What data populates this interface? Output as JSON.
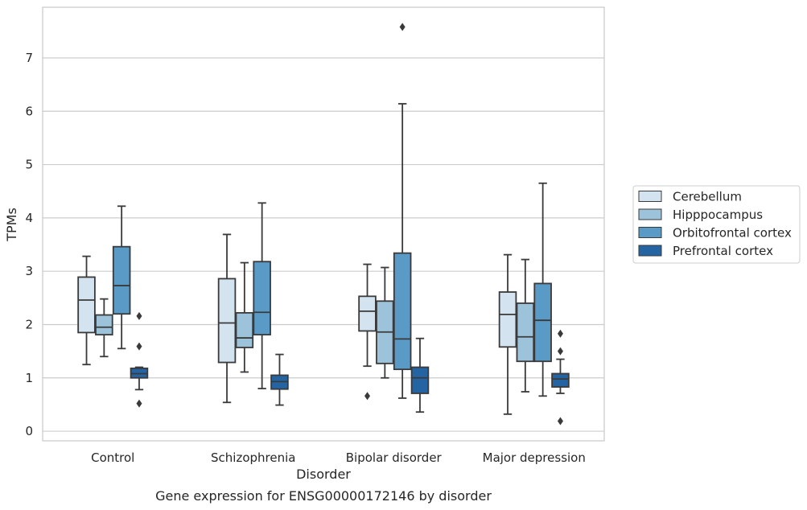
{
  "chart_data": {
    "type": "box",
    "title": "Gene expression for ENSG00000172146 by disorder",
    "xlabel": "Disorder",
    "ylabel": "TPMs",
    "ylim": [
      -0.18,
      7.95
    ],
    "yticks": [
      0,
      1,
      2,
      3,
      4,
      5,
      6,
      7
    ],
    "grid": "horizontal",
    "legend_position": "right",
    "categories": [
      "Control",
      "Schizophrenia",
      "Bipolar disorder",
      "Major depression"
    ],
    "series": [
      {
        "name": "Cerebellum",
        "color": "#d4e3f0",
        "boxes": [
          {
            "whisker_low": 1.25,
            "q1": 1.85,
            "median": 2.46,
            "q3": 2.89,
            "whisker_high": 3.28,
            "outliers": []
          },
          {
            "whisker_low": 0.54,
            "q1": 1.29,
            "median": 2.03,
            "q3": 2.86,
            "whisker_high": 3.69,
            "outliers": []
          },
          {
            "whisker_low": 1.22,
            "q1": 1.88,
            "median": 2.25,
            "q3": 2.53,
            "whisker_high": 3.13,
            "outliers": [
              0.66
            ]
          },
          {
            "whisker_low": 0.32,
            "q1": 1.58,
            "median": 2.19,
            "q3": 2.61,
            "whisker_high": 3.31,
            "outliers": []
          }
        ]
      },
      {
        "name": "Hipppocampus",
        "color": "#9cc3da",
        "boxes": [
          {
            "whisker_low": 1.4,
            "q1": 1.81,
            "median": 1.95,
            "q3": 2.18,
            "whisker_high": 2.48,
            "outliers": []
          },
          {
            "whisker_low": 1.11,
            "q1": 1.57,
            "median": 1.75,
            "q3": 2.22,
            "whisker_high": 3.16,
            "outliers": []
          },
          {
            "whisker_low": 1.0,
            "q1": 1.27,
            "median": 1.86,
            "q3": 2.44,
            "whisker_high": 3.07,
            "outliers": []
          },
          {
            "whisker_low": 0.74,
            "q1": 1.31,
            "median": 1.77,
            "q3": 2.4,
            "whisker_high": 3.22,
            "outliers": []
          }
        ]
      },
      {
        "name": "Orbitofrontal cortex",
        "color": "#5a9ac6",
        "boxes": [
          {
            "whisker_low": 1.55,
            "q1": 2.2,
            "median": 2.73,
            "q3": 3.46,
            "whisker_high": 4.22,
            "outliers": []
          },
          {
            "whisker_low": 0.8,
            "q1": 1.81,
            "median": 2.23,
            "q3": 3.18,
            "whisker_high": 4.28,
            "outliers": []
          },
          {
            "whisker_low": 0.62,
            "q1": 1.16,
            "median": 1.73,
            "q3": 3.34,
            "whisker_high": 6.14,
            "outliers": [
              7.58
            ]
          },
          {
            "whisker_low": 0.66,
            "q1": 1.31,
            "median": 2.08,
            "q3": 2.77,
            "whisker_high": 4.65,
            "outliers": []
          }
        ]
      },
      {
        "name": "Prefrontal cortex",
        "color": "#2464a3",
        "boxes": [
          {
            "whisker_low": 0.78,
            "q1": 1.0,
            "median": 1.08,
            "q3": 1.18,
            "whisker_high": 1.2,
            "outliers": [
              2.16,
              1.59,
              0.52
            ]
          },
          {
            "whisker_low": 0.49,
            "q1": 0.79,
            "median": 0.93,
            "q3": 1.05,
            "whisker_high": 1.44,
            "outliers": []
          },
          {
            "whisker_low": 0.36,
            "q1": 0.71,
            "median": 1.0,
            "q3": 1.2,
            "whisker_high": 1.74,
            "outliers": []
          },
          {
            "whisker_low": 0.71,
            "q1": 0.83,
            "median": 0.98,
            "q3": 1.08,
            "whisker_high": 1.35,
            "outliers": [
              1.83,
              1.5,
              0.19
            ]
          }
        ]
      }
    ]
  }
}
